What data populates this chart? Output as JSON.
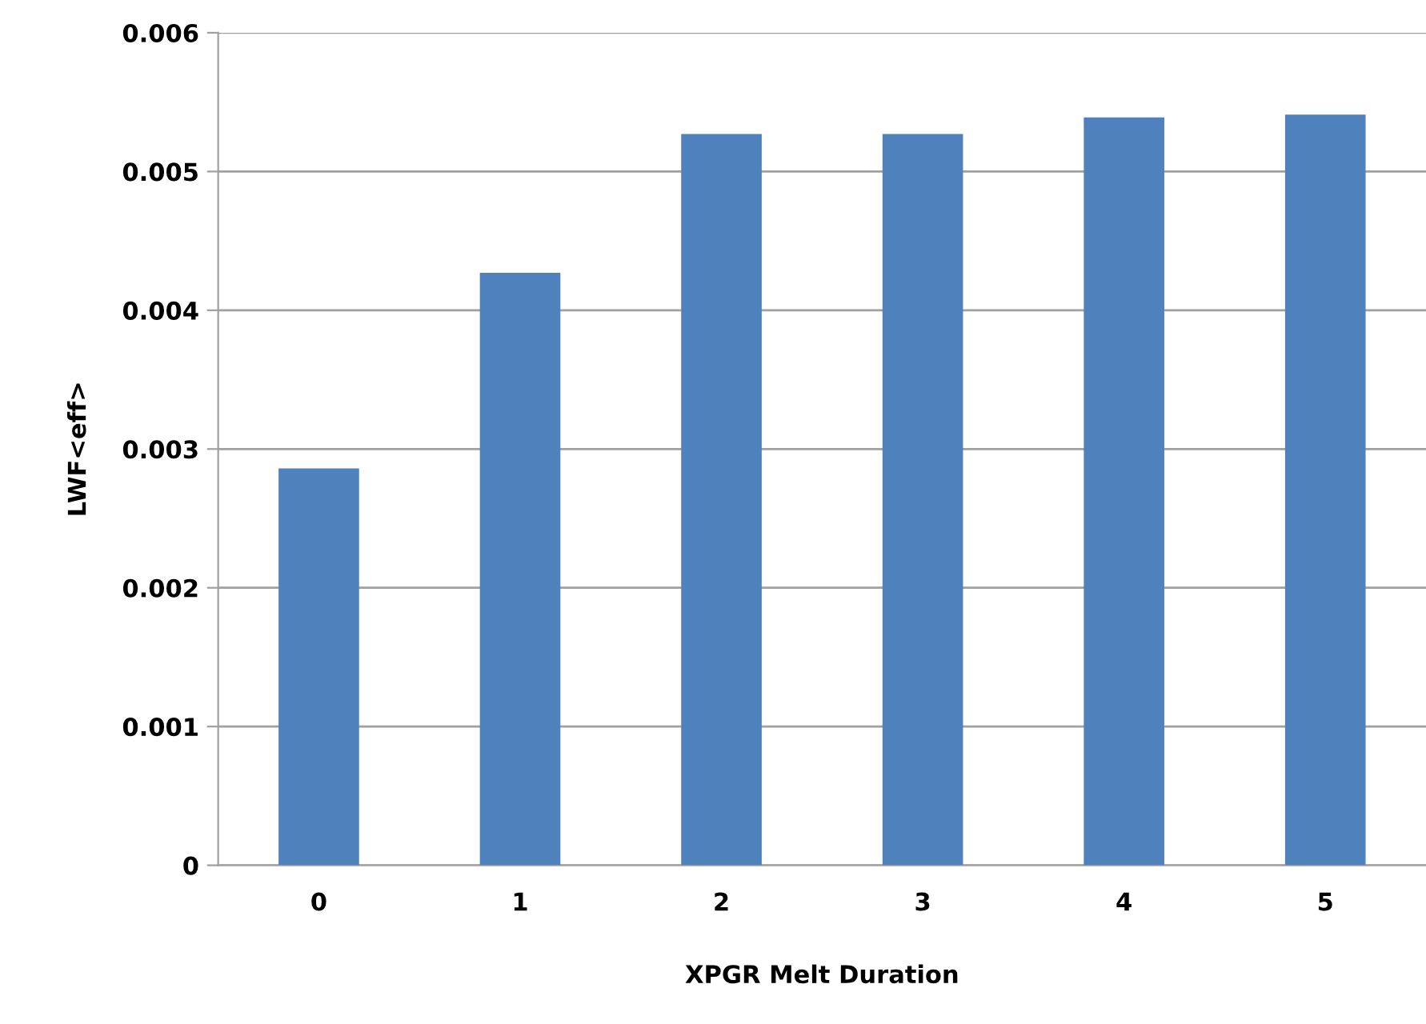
{
  "chart_data": {
    "type": "bar",
    "xlabel": "XPGR Melt Duration",
    "ylabel": "LWF<eff>",
    "categories": [
      "0",
      "1",
      "2",
      "3",
      "4",
      "5"
    ],
    "values": [
      0.00286,
      0.00427,
      0.00527,
      0.00527,
      0.00539,
      0.00541
    ],
    "color": "#4f81bd",
    "ylim": [
      0,
      0.006
    ],
    "yticks": [
      0,
      0.001,
      0.002,
      0.003,
      0.004,
      0.005,
      0.006
    ],
    "grid": "y"
  }
}
